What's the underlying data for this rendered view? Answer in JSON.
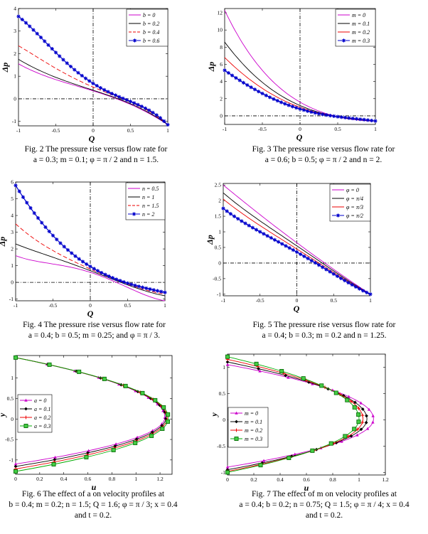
{
  "figures": [
    {
      "id": "fig2",
      "caption_line1": "Fig. 2 The pressure rise versus flow rate for",
      "caption_line2": "a = 0.3; m = 0.1; φ = π / 2  and  n = 1.5.",
      "xlabel": "Q",
      "ylabel": "Δp"
    },
    {
      "id": "fig3",
      "caption_line1": "Fig. 3 The pressure rise versus flow rate for",
      "caption_line2": "a = 0.6; b = 0.5; φ = π / 2  and  n = 2.",
      "xlabel": "Q",
      "ylabel": "Δp"
    },
    {
      "id": "fig4",
      "caption_line1": "Fig. 4 The pressure rise versus flow rate for",
      "caption_line2": "a = 0.4; b = 0.5; m = 0.25;  and  φ = π / 3.",
      "xlabel": "Q",
      "ylabel": "Δp"
    },
    {
      "id": "fig5",
      "caption_line1": "Fig. 5 The pressure rise versus flow rate for",
      "caption_line2": "a = 0.4; b = 0.3; m = 0.2  and  n = 1.25.",
      "xlabel": "Q",
      "ylabel": "Δp"
    },
    {
      "id": "fig6",
      "caption_line1": "Fig. 6 The effect of  a  on velocity profiles at",
      "caption_line2": "b = 0.4; m = 0.2; n = 1.5; Q = 1.6; φ = π / 3; x = 0.4",
      "caption_line3": "and t = 0.2.",
      "xlabel": "u",
      "ylabel": "y"
    },
    {
      "id": "fig7",
      "caption_line1": "Fig. 7 The effect of  m  on velocity profiles at",
      "caption_line2": "a = 0.4; b = 0.2; n = 0.75; Q = 1.5; φ = π / 4; x = 0.4",
      "caption_line3": "and t = 0.2.",
      "xlabel": "u",
      "ylabel": "y"
    }
  ],
  "chart_data": [
    {
      "type": "line",
      "xlim": [
        -1,
        1
      ],
      "ylim": [
        -1.2,
        4
      ],
      "xticks": [
        -1,
        -0.5,
        0,
        0.5,
        1
      ],
      "yticks": [
        -1,
        0,
        1,
        2,
        3,
        4
      ],
      "legend": "top-right",
      "series": [
        {
          "name": "b = 0",
          "color": "#cc00cc",
          "style": "solid",
          "x": [
            -1,
            -0.5,
            0,
            0.5,
            1
          ],
          "y": [
            1.55,
            0.85,
            0.35,
            -0.25,
            -1.15
          ]
        },
        {
          "name": "b = 0.2",
          "color": "#000000",
          "style": "solid",
          "x": [
            -1,
            -0.5,
            0,
            0.5,
            1
          ],
          "y": [
            1.75,
            0.95,
            0.38,
            -0.22,
            -1.15
          ]
        },
        {
          "name": "b = 0.4",
          "color": "#ee0000",
          "style": "dashed",
          "x": [
            -1,
            -0.5,
            0,
            0.5,
            1
          ],
          "y": [
            2.35,
            1.35,
            0.52,
            -0.15,
            -1.15
          ]
        },
        {
          "name": "b = 0.6",
          "color": "#0000cc",
          "style": "solid",
          "marker": "star",
          "x": [
            -1,
            -0.5,
            0,
            0.5,
            1
          ],
          "y": [
            3.65,
            2.05,
            0.68,
            -0.12,
            -1.15
          ]
        }
      ]
    },
    {
      "type": "line",
      "xlim": [
        -1,
        1
      ],
      "ylim": [
        -1,
        12.5
      ],
      "xticks": [
        -1,
        -0.5,
        0,
        0.5,
        1
      ],
      "yticks": [
        0,
        2,
        4,
        6,
        8,
        10,
        12
      ],
      "legend": "top-right",
      "series": [
        {
          "name": "m = 0",
          "color": "#cc00cc",
          "style": "solid",
          "x": [
            -1,
            -0.5,
            0,
            0.5,
            1
          ],
          "y": [
            12.3,
            5.3,
            1.6,
            -0.1,
            -0.6
          ]
        },
        {
          "name": "m = 0.1",
          "color": "#000000",
          "style": "solid",
          "x": [
            -1,
            -0.5,
            0,
            0.5,
            1
          ],
          "y": [
            8.6,
            3.9,
            1.2,
            -0.1,
            -0.6
          ]
        },
        {
          "name": "m = 0.2",
          "color": "#ee0000",
          "style": "solid",
          "x": [
            -1,
            -0.5,
            0,
            0.5,
            1
          ],
          "y": [
            6.8,
            3.2,
            1.0,
            -0.1,
            -0.6
          ]
        },
        {
          "name": "m = 0.3",
          "color": "#0000cc",
          "style": "solid",
          "marker": "star",
          "x": [
            -1,
            -0.5,
            0,
            0.5,
            1
          ],
          "y": [
            5.3,
            2.6,
            0.8,
            -0.1,
            -0.6
          ]
        }
      ]
    },
    {
      "type": "line",
      "xlim": [
        -1,
        1
      ],
      "ylim": [
        -1.1,
        6
      ],
      "xticks": [
        -1,
        -0.5,
        0,
        0.5,
        1
      ],
      "yticks": [
        -1,
        0,
        1,
        2,
        3,
        4,
        5,
        6
      ],
      "legend": "top-right",
      "series": [
        {
          "name": "n = 0.5",
          "color": "#cc00cc",
          "style": "solid",
          "x": [
            -1,
            -0.5,
            0,
            0.5,
            1
          ],
          "y": [
            1.6,
            1.1,
            0.6,
            -0.3,
            -1.1
          ]
        },
        {
          "name": "n = 1",
          "color": "#000000",
          "style": "solid",
          "x": [
            -1,
            -0.5,
            0,
            0.5,
            1
          ],
          "y": [
            2.3,
            1.5,
            0.7,
            -0.15,
            -0.8
          ]
        },
        {
          "name": "n = 1.5",
          "color": "#ee0000",
          "style": "dashed",
          "x": [
            -1,
            -0.5,
            0,
            0.5,
            1
          ],
          "y": [
            3.5,
            1.9,
            0.8,
            -0.1,
            -0.7
          ]
        },
        {
          "name": "n = 2",
          "color": "#0000cc",
          "style": "solid",
          "marker": "star",
          "x": [
            -1,
            -0.5,
            0,
            0.5,
            1
          ],
          "y": [
            5.8,
            2.8,
            0.95,
            -0.05,
            -0.6
          ]
        }
      ]
    },
    {
      "type": "line",
      "xlim": [
        -1,
        1
      ],
      "ylim": [
        -1.05,
        2.55
      ],
      "xticks": [
        -1,
        -0.5,
        0,
        0.5,
        1
      ],
      "yticks": [
        -1,
        -0.5,
        0,
        0.5,
        1,
        1.5,
        2,
        2.5
      ],
      "legend": "top-right",
      "series": [
        {
          "name": "φ = 0",
          "color": "#cc00cc",
          "style": "solid",
          "x": [
            -1,
            -0.5,
            0,
            0.5,
            1
          ],
          "y": [
            2.5,
            1.55,
            0.65,
            -0.2,
            -1.0
          ]
        },
        {
          "name": "φ = π/4",
          "color": "#000000",
          "style": "solid",
          "x": [
            -1,
            -0.5,
            0,
            0.5,
            1
          ],
          "y": [
            2.25,
            1.35,
            0.55,
            -0.25,
            -1.0
          ]
        },
        {
          "name": "φ = π/3",
          "color": "#ee0000",
          "style": "solid",
          "x": [
            -1,
            -0.5,
            0,
            0.5,
            1
          ],
          "y": [
            2.05,
            1.2,
            0.45,
            -0.3,
            -1.0
          ]
        },
        {
          "name": "φ = π/2",
          "color": "#0000cc",
          "style": "solid",
          "marker": "star",
          "x": [
            -1,
            -0.5,
            0,
            0.5,
            1
          ],
          "y": [
            1.75,
            1.0,
            0.35,
            -0.35,
            -1.0
          ]
        }
      ]
    },
    {
      "type": "line",
      "xlim": [
        0,
        1.3
      ],
      "ylim": [
        -1.35,
        1.55
      ],
      "xticks": [
        0,
        0.2,
        0.4,
        0.6,
        0.8,
        1,
        1.2
      ],
      "yticks": [
        -1,
        -0.5,
        0,
        0.5,
        1
      ],
      "legend": "left",
      "series": [
        {
          "name": "a = 0",
          "color": "#cc00cc",
          "marker": "triangle",
          "vertex_u": 1.24,
          "top_y": 1.5,
          "bottom_y": -1.1
        },
        {
          "name": "a = 0.1",
          "color": "#000000",
          "marker": "diamond",
          "vertex_u": 1.25,
          "top_y": 1.5,
          "bottom_y": -1.16
        },
        {
          "name": "a = 0.2",
          "color": "#ee0000",
          "marker": "plus",
          "vertex_u": 1.26,
          "top_y": 1.5,
          "bottom_y": -1.22
        },
        {
          "name": "a = 0.3",
          "color": "#00aa00",
          "marker": "square",
          "vertex_u": 1.27,
          "top_y": 1.5,
          "bottom_y": -1.28
        }
      ]
    },
    {
      "type": "line",
      "xlim": [
        0,
        1.2
      ],
      "ylim": [
        -1.05,
        1.25
      ],
      "xticks": [
        0,
        0.2,
        0.4,
        0.6,
        0.8,
        1,
        1.2
      ],
      "yticks": [
        -1,
        -0.5,
        0,
        0.5,
        1
      ],
      "legend": "bottom-left",
      "series": [
        {
          "name": "m = 0",
          "color": "#cc00cc",
          "marker": "triangle",
          "vertex_u": 1.11,
          "top_y": 1.05,
          "bottom_y": -0.9
        },
        {
          "name": "m = 0.1",
          "color": "#000000",
          "marker": "diamond",
          "vertex_u": 1.06,
          "top_y": 1.1,
          "bottom_y": -0.95
        },
        {
          "name": "m = 0.2",
          "color": "#ee0000",
          "marker": "plus",
          "vertex_u": 1.03,
          "top_y": 1.15,
          "bottom_y": -0.98
        },
        {
          "name": "m = 0.3",
          "color": "#00aa00",
          "marker": "square",
          "vertex_u": 1.0,
          "top_y": 1.2,
          "bottom_y": -1.0
        }
      ]
    }
  ]
}
